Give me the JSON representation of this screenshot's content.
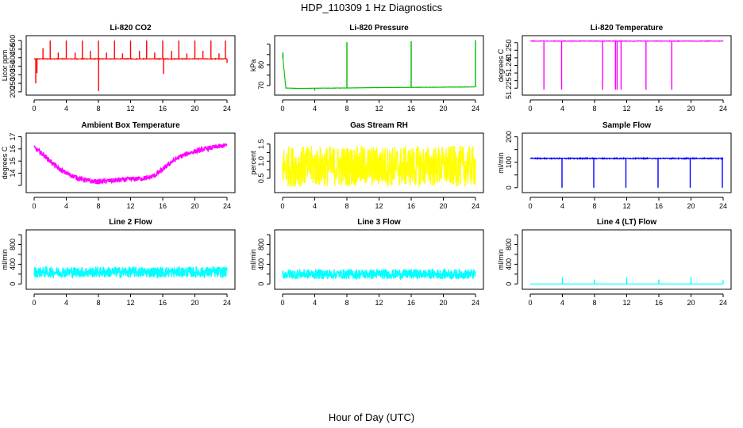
{
  "figure": {
    "title": "HDP_110309  1 Hz Diagnostics",
    "xlabel": "Hour of Day (UTC)"
  },
  "chart_data": [
    {
      "type": "line",
      "title": "Li-820 CO2",
      "ylabel": "Licor ppm",
      "color": "#ff0000",
      "xlim": [
        0,
        24
      ],
      "xticks": [
        0,
        4,
        8,
        12,
        16,
        20,
        24
      ],
      "xtick_labels": [
        "0",
        "4",
        "8",
        "12",
        "16",
        "20",
        "24"
      ],
      "ylim": [
        195,
        515
      ],
      "yticks": [
        200,
        250,
        300,
        350,
        400,
        450,
        500
      ],
      "ytick_labels": [
        "200",
        "250",
        "300",
        "350",
        "400",
        "450",
        "500"
      ],
      "baseline": 393,
      "noise": 4,
      "x": [
        0,
        24
      ],
      "y": [
        393,
        393
      ],
      "events": [
        {
          "x": 0.2,
          "y": 250
        },
        {
          "x": 0.35,
          "y": 310
        },
        {
          "x": 1.1,
          "y": 455
        },
        {
          "x": 2.0,
          "y": 500
        },
        {
          "x": 3.0,
          "y": 430
        },
        {
          "x": 4.0,
          "y": 500
        },
        {
          "x": 5.1,
          "y": 430
        },
        {
          "x": 6.0,
          "y": 500
        },
        {
          "x": 7.0,
          "y": 440
        },
        {
          "x": 8.0,
          "y": 500
        },
        {
          "x": 8.02,
          "y": 205
        },
        {
          "x": 9.0,
          "y": 430
        },
        {
          "x": 10.0,
          "y": 500
        },
        {
          "x": 11.0,
          "y": 425
        },
        {
          "x": 12.0,
          "y": 500
        },
        {
          "x": 13.1,
          "y": 440
        },
        {
          "x": 14.0,
          "y": 500
        },
        {
          "x": 15.0,
          "y": 430
        },
        {
          "x": 16.0,
          "y": 500
        },
        {
          "x": 16.1,
          "y": 305
        },
        {
          "x": 17.1,
          "y": 440
        },
        {
          "x": 18.0,
          "y": 500
        },
        {
          "x": 19.0,
          "y": 425
        },
        {
          "x": 20.0,
          "y": 500
        },
        {
          "x": 21.0,
          "y": 440
        },
        {
          "x": 22.0,
          "y": 500
        },
        {
          "x": 23.0,
          "y": 425
        },
        {
          "x": 23.8,
          "y": 500
        },
        {
          "x": 24.0,
          "y": 370
        }
      ]
    },
    {
      "type": "line",
      "title": "Li-820 Pressure",
      "ylabel": "kPa",
      "color": "#00bb00",
      "xlim": [
        0,
        24
      ],
      "xticks": [
        0,
        4,
        8,
        12,
        16,
        20,
        24
      ],
      "xtick_labels": [
        "0",
        "4",
        "8",
        "12",
        "16",
        "20",
        "24"
      ],
      "ylim": [
        66.5,
        93
      ],
      "yticks": [
        70,
        75,
        80,
        85,
        90
      ],
      "ytick_labels": [
        "70",
        "",
        "80",
        "",
        ""
      ],
      "noise": 0.15,
      "x": [
        0,
        0.4,
        2,
        4,
        8,
        12,
        16,
        20,
        24
      ],
      "y": [
        85,
        68.8,
        68.6,
        68.7,
        68.8,
        69.0,
        69.1,
        69.2,
        69.3
      ],
      "events": [
        {
          "x": 0.05,
          "y": 86
        },
        {
          "x": 4.0,
          "y": 67.5
        },
        {
          "x": 8.0,
          "y": 91
        },
        {
          "x": 16.0,
          "y": 91.5
        },
        {
          "x": 24.0,
          "y": 92
        }
      ]
    },
    {
      "type": "line",
      "title": "Li-820 Temperature",
      "ylabel": "degrees C",
      "color": "#ff00ff",
      "xlim": [
        0,
        24
      ],
      "xticks": [
        0,
        4,
        8,
        12,
        16,
        20,
        24
      ],
      "xtick_labels": [
        "0",
        "4",
        "8",
        "12",
        "16",
        "20",
        "24"
      ],
      "ylim": [
        51.222,
        51.258
      ],
      "yticks": [
        51.225,
        51.23,
        51.235,
        51.24,
        51.245,
        51.25,
        51.255
      ],
      "ytick_labels": [
        "51.225",
        "",
        "",
        "51.240",
        "",
        "51.250",
        ""
      ],
      "noise": 0.0003,
      "x": [
        0,
        24
      ],
      "y": [
        51.256,
        51.256
      ],
      "events": [
        {
          "x": 1.7,
          "y": 51.224
        },
        {
          "x": 3.9,
          "y": 51.224
        },
        {
          "x": 9.0,
          "y": 51.224
        },
        {
          "x": 10.6,
          "y": 51.224
        },
        {
          "x": 10.8,
          "y": 51.224
        },
        {
          "x": 11.3,
          "y": 51.224
        },
        {
          "x": 14.4,
          "y": 51.224
        },
        {
          "x": 17.6,
          "y": 51.224
        }
      ]
    },
    {
      "type": "line",
      "title": "Ambient Box Temperature",
      "ylabel": "degrees C",
      "color": "#ff00ff",
      "xlim": [
        0,
        24
      ],
      "xticks": [
        0,
        4,
        8,
        12,
        16,
        20,
        24
      ],
      "xtick_labels": [
        "0",
        "4",
        "8",
        "12",
        "16",
        "20",
        "24"
      ],
      "ylim": [
        12.6,
        17.1
      ],
      "yticks": [
        13,
        14,
        15,
        16,
        17
      ],
      "ytick_labels": [
        "",
        "14",
        "15",
        "16",
        "17"
      ],
      "noise": 0.4,
      "x": [
        0,
        1,
        2,
        3,
        4,
        5,
        6,
        7,
        8,
        9,
        10,
        11,
        12,
        13,
        14,
        15,
        16,
        17,
        18,
        19,
        20,
        21,
        22,
        23,
        24
      ],
      "y": [
        16.1,
        15.6,
        15.0,
        14.4,
        14.0,
        13.7,
        13.5,
        13.35,
        13.3,
        13.35,
        13.4,
        13.45,
        13.5,
        13.55,
        13.6,
        13.8,
        14.3,
        14.9,
        15.3,
        15.6,
        15.8,
        15.95,
        16.1,
        16.2,
        16.3
      ]
    },
    {
      "type": "line",
      "title": "Gas Stream RH",
      "ylabel": "percent",
      "color": "#ffff00",
      "xlim": [
        0,
        24
      ],
      "xticks": [
        0,
        4,
        8,
        12,
        16,
        20,
        24
      ],
      "xtick_labels": [
        "0",
        "4",
        "8",
        "12",
        "16",
        "20",
        "24"
      ],
      "ylim": [
        0.15,
        1.75
      ],
      "yticks": [
        0.5,
        0.75,
        1.0,
        1.25,
        1.5
      ],
      "ytick_labels": [
        "0.5",
        "",
        "1.0",
        "",
        "1.5"
      ],
      "noise": 1.2,
      "x": [
        0,
        24
      ],
      "y": [
        0.85,
        0.85
      ]
    },
    {
      "type": "line",
      "title": "Sample Flow",
      "ylabel": "ml/min",
      "color": "#0000ff",
      "xlim": [
        0,
        24
      ],
      "xticks": [
        0,
        4,
        8,
        12,
        16,
        20,
        24
      ],
      "xtick_labels": [
        "0",
        "4",
        "8",
        "12",
        "16",
        "20",
        "24"
      ],
      "ylim": [
        -10,
        205
      ],
      "yticks": [
        0,
        50,
        100,
        150,
        200
      ],
      "ytick_labels": [
        "0",
        "",
        "100",
        "",
        "200"
      ],
      "noise": 4,
      "x": [
        0,
        24
      ],
      "y": [
        115,
        115
      ],
      "events": [
        {
          "x": 3.95,
          "y": 0
        },
        {
          "x": 7.9,
          "y": 0
        },
        {
          "x": 11.9,
          "y": 0
        },
        {
          "x": 15.9,
          "y": 0
        },
        {
          "x": 19.9,
          "y": 0
        },
        {
          "x": 23.9,
          "y": 0
        }
      ]
    },
    {
      "type": "line",
      "title": "Line 2 Flow",
      "ylabel": "ml/min",
      "color": "#00ffff",
      "xlim": [
        0,
        24
      ],
      "xticks": [
        0,
        4,
        8,
        12,
        16,
        20,
        24
      ],
      "xtick_labels": [
        "0",
        "4",
        "8",
        "12",
        "16",
        "20",
        "24"
      ],
      "ylim": [
        -60,
        1050
      ],
      "yticks": [
        0,
        200,
        400,
        600,
        800,
        1000
      ],
      "ytick_labels": [
        "0",
        "",
        "400",
        "",
        "800",
        ""
      ],
      "noise": 220,
      "x": [
        0,
        24
      ],
      "y": [
        240,
        240
      ]
    },
    {
      "type": "line",
      "title": "Line 3 Flow",
      "ylabel": "ml/min",
      "color": "#00ffff",
      "xlim": [
        0,
        24
      ],
      "xticks": [
        0,
        4,
        8,
        12,
        16,
        20,
        24
      ],
      "xtick_labels": [
        "0",
        "4",
        "8",
        "12",
        "16",
        "20",
        "24"
      ],
      "ylim": [
        -60,
        1050
      ],
      "yticks": [
        0,
        200,
        400,
        600,
        800,
        1000
      ],
      "ytick_labels": [
        "0",
        "",
        "400",
        "",
        "800",
        ""
      ],
      "noise": 200,
      "x": [
        0,
        24
      ],
      "y": [
        200,
        200
      ]
    },
    {
      "type": "line",
      "title": "Line 4 (LT) Flow",
      "ylabel": "ml/min",
      "color": "#00ffff",
      "xlim": [
        0,
        24
      ],
      "xticks": [
        0,
        4,
        8,
        12,
        16,
        20,
        24
      ],
      "xtick_labels": [
        "0",
        "4",
        "8",
        "12",
        "16",
        "20",
        "24"
      ],
      "ylim": [
        -60,
        1050
      ],
      "yticks": [
        0,
        200,
        400,
        600,
        800,
        1000
      ],
      "ytick_labels": [
        "0",
        "",
        "400",
        "",
        "800",
        ""
      ],
      "noise": 3,
      "x": [
        0,
        24
      ],
      "y": [
        0,
        0
      ],
      "events": [
        {
          "x": 4.0,
          "y": 130
        },
        {
          "x": 8.0,
          "y": 90
        },
        {
          "x": 12.0,
          "y": 130
        },
        {
          "x": 16.0,
          "y": 90
        },
        {
          "x": 20.0,
          "y": 140
        },
        {
          "x": 24.0,
          "y": 80
        }
      ]
    }
  ]
}
